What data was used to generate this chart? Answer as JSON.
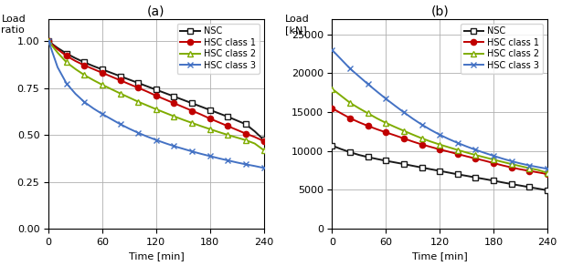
{
  "time_pts": [
    0,
    10,
    20,
    30,
    40,
    50,
    60,
    70,
    80,
    90,
    100,
    110,
    120,
    130,
    140,
    150,
    160,
    170,
    180,
    190,
    200,
    210,
    220,
    230,
    240
  ],
  "NSC_a": [
    1.0,
    0.965,
    0.935,
    0.91,
    0.888,
    0.868,
    0.85,
    0.832,
    0.814,
    0.796,
    0.778,
    0.76,
    0.742,
    0.724,
    0.706,
    0.688,
    0.67,
    0.652,
    0.634,
    0.616,
    0.598,
    0.578,
    0.558,
    0.52,
    0.475
  ],
  "HSC1_a": [
    1.0,
    0.958,
    0.922,
    0.895,
    0.872,
    0.852,
    0.832,
    0.812,
    0.792,
    0.772,
    0.752,
    0.732,
    0.71,
    0.69,
    0.67,
    0.65,
    0.63,
    0.61,
    0.588,
    0.568,
    0.548,
    0.528,
    0.508,
    0.49,
    0.468
  ],
  "HSC2_a": [
    1.0,
    0.94,
    0.888,
    0.852,
    0.82,
    0.793,
    0.768,
    0.745,
    0.722,
    0.7,
    0.678,
    0.658,
    0.638,
    0.619,
    0.6,
    0.582,
    0.565,
    0.548,
    0.532,
    0.516,
    0.501,
    0.487,
    0.473,
    0.455,
    0.42
  ],
  "HSC3_a": [
    1.0,
    0.862,
    0.775,
    0.72,
    0.676,
    0.642,
    0.612,
    0.585,
    0.558,
    0.534,
    0.512,
    0.492,
    0.474,
    0.457,
    0.441,
    0.427,
    0.413,
    0.4,
    0.388,
    0.376,
    0.365,
    0.354,
    0.344,
    0.335,
    0.325
  ],
  "NSC_b": [
    10700,
    10250,
    9850,
    9500,
    9220,
    8980,
    8750,
    8540,
    8330,
    8100,
    7880,
    7660,
    7450,
    7230,
    7010,
    6810,
    6600,
    6400,
    6190,
    5970,
    5760,
    5560,
    5360,
    5160,
    4950
  ],
  "HSC1_b": [
    15500,
    14850,
    14220,
    13700,
    13230,
    12800,
    12400,
    12020,
    11620,
    11220,
    10850,
    10530,
    10210,
    9920,
    9620,
    9320,
    9040,
    8760,
    8460,
    8160,
    7890,
    7650,
    7450,
    7250,
    7050
  ],
  "HSC2_b": [
    18000,
    17100,
    16200,
    15500,
    14850,
    14200,
    13620,
    13100,
    12600,
    12110,
    11640,
    11220,
    10840,
    10490,
    10140,
    9810,
    9490,
    9200,
    8900,
    8610,
    8330,
    8060,
    7800,
    7560,
    7200
  ],
  "HSC3_b": [
    23000,
    21800,
    20600,
    19600,
    18600,
    17650,
    16720,
    15840,
    14980,
    14160,
    13400,
    12720,
    12100,
    11550,
    11050,
    10590,
    10160,
    9770,
    9390,
    9030,
    8700,
    8410,
    8150,
    7930,
    7720
  ],
  "color_NSC": "#1a1a1a",
  "color_HSC1": "#c00000",
  "color_HSC2": "#7fac00",
  "color_HSC3": "#4472c4",
  "label_NSC": "NSC",
  "label_HSC1": "HSC class 1",
  "label_HSC2": "HSC class 2",
  "label_HSC3": "HSC class 3",
  "title_a": "(a)",
  "title_b": "(b)",
  "ylabel_a1": "Load",
  "ylabel_a2": "ratio",
  "ylabel_b1": "Load",
  "ylabel_b2": "[kN]",
  "xlabel": "Time [min]",
  "xlim": [
    0,
    240
  ],
  "ylim_a": [
    0.0,
    1.12
  ],
  "ylim_b": [
    0,
    27000
  ],
  "yticks_a": [
    0.0,
    0.25,
    0.5,
    0.75,
    1.0
  ],
  "yticks_b": [
    0,
    5000,
    10000,
    15000,
    20000,
    25000
  ],
  "xticks": [
    0,
    60,
    120,
    180,
    240
  ],
  "markersize": 4.5,
  "lw": 1.4,
  "grid_color": "#b0b0b0",
  "grid_lw": 0.6
}
